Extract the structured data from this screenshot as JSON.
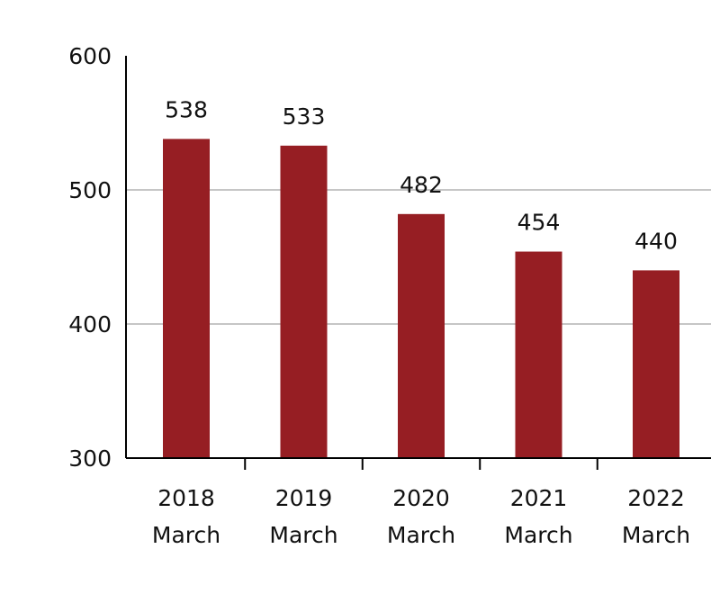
{
  "chart_data": {
    "type": "bar",
    "title": "",
    "xlabel": "",
    "ylabel": "",
    "categories": [
      [
        "2018",
        "March"
      ],
      [
        "2019",
        "March"
      ],
      [
        "2020",
        "March"
      ],
      [
        "2021",
        "March"
      ],
      [
        "2022",
        "March"
      ]
    ],
    "values": [
      538,
      533,
      482,
      454,
      440
    ],
    "data_labels": [
      "538",
      "533",
      "482",
      "454",
      "440"
    ],
    "ylim": [
      300,
      600
    ],
    "yticks": [
      300,
      400,
      500,
      600
    ],
    "ytick_labels": [
      "300",
      "400",
      "500",
      "600"
    ],
    "grid": true,
    "legend": false,
    "colors": {
      "bar": "#961e23",
      "grid": "#b4b4b4",
      "axis": "#000000",
      "text": "#111111"
    }
  }
}
